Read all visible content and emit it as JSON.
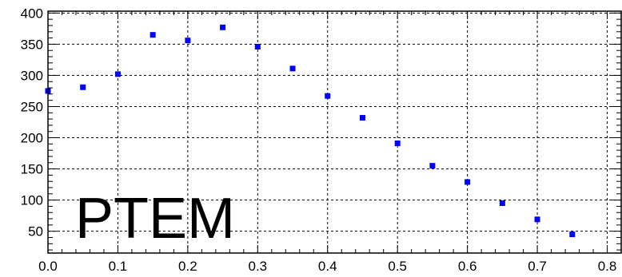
{
  "chart_data": {
    "type": "scatter",
    "title": "",
    "xlabel": "",
    "ylabel": "",
    "xlim": [
      0.0,
      0.82
    ],
    "ylim": [
      15,
      403
    ],
    "grid": true,
    "marker": "square",
    "colors": {
      "marker": "#0000ff",
      "axis": "#000000",
      "grid": "#000000"
    },
    "x_ticks": [
      "0.0",
      "0.1",
      "0.2",
      "0.3",
      "0.4",
      "0.5",
      "0.6",
      "0.7",
      "0.8"
    ],
    "y_ticks": [
      "50",
      "100",
      "150",
      "200",
      "250",
      "300",
      "350",
      "400"
    ],
    "annotation": "PTEM",
    "series": [
      {
        "x": [
          0.0,
          0.05,
          0.1,
          0.15,
          0.2,
          0.25,
          0.3,
          0.35,
          0.4,
          0.45,
          0.5,
          0.55,
          0.6,
          0.65,
          0.7,
          0.75
        ],
        "y": [
          275,
          281,
          302,
          365,
          356,
          377,
          346,
          311,
          267,
          232,
          191,
          155,
          129,
          95,
          69,
          45
        ]
      }
    ]
  }
}
